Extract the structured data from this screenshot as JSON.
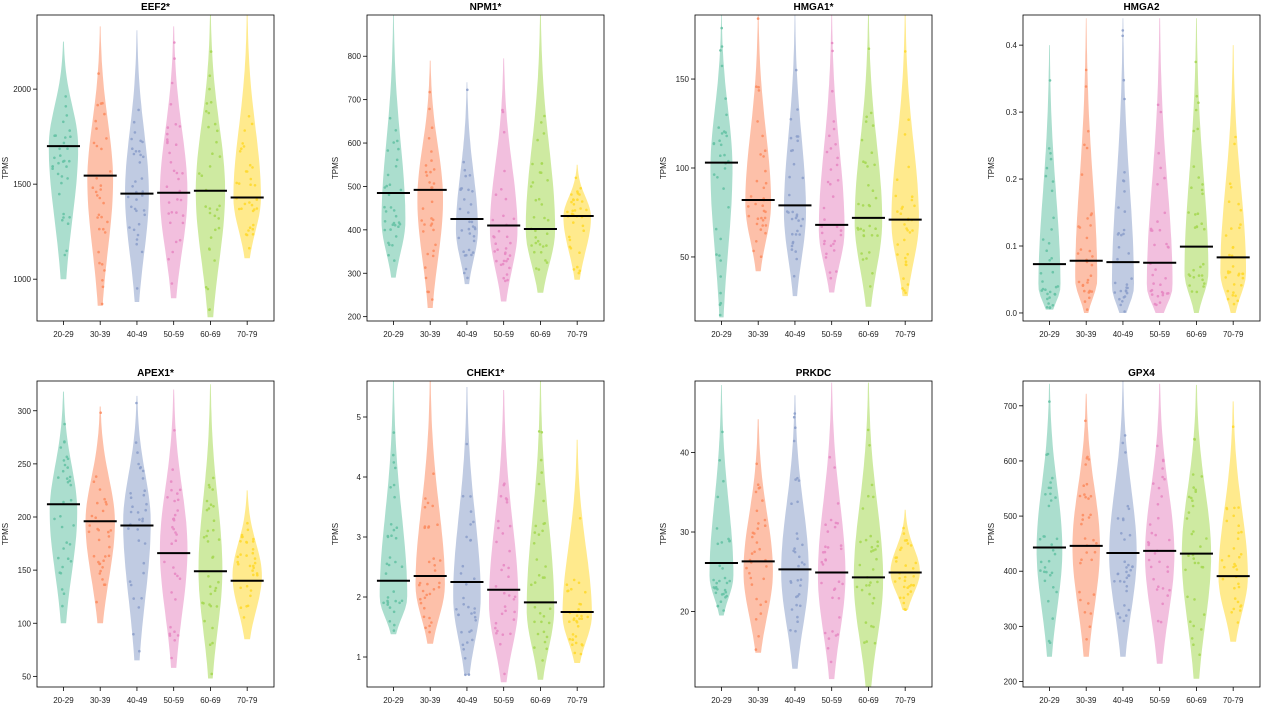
{
  "groups": [
    "20-29",
    "30-39",
    "40-49",
    "50-59",
    "60-69",
    "70-79"
  ],
  "colors": [
    "#66c2a5",
    "#fc8d62",
    "#8da0cb",
    "#e78ac3",
    "#a6d854",
    "#ffd92f"
  ],
  "ylabel": "TPMS",
  "chart_data": [
    {
      "type": "violin",
      "title": "EEF2*",
      "ylabel": "TPMS",
      "categories": [
        "20-29",
        "30-39",
        "40-49",
        "50-59",
        "60-69",
        "70-79"
      ],
      "yticks": [
        1000,
        1500,
        2000
      ],
      "ylim": [
        780,
        2390
      ],
      "medians": [
        1700,
        1545,
        1450,
        1455,
        1465,
        1430
      ],
      "ranges": [
        [
          1000,
          2250
        ],
        [
          860,
          2330
        ],
        [
          880,
          2310
        ],
        [
          900,
          2330
        ],
        [
          800,
          2390
        ],
        [
          1110,
          2390
        ]
      ],
      "widths": [
        0.8,
        0.7,
        0.65,
        0.75,
        0.8,
        0.75
      ],
      "peaks": [
        1700,
        1520,
        1450,
        1450,
        1460,
        1430
      ]
    },
    {
      "type": "violin",
      "title": "NPM1*",
      "ylabel": "TPMS",
      "categories": [
        "20-29",
        "30-39",
        "40-49",
        "50-59",
        "60-69",
        "70-79"
      ],
      "yticks": [
        200,
        300,
        400,
        500,
        600,
        700,
        800
      ],
      "ylim": [
        190,
        895
      ],
      "medians": [
        485,
        492,
        425,
        410,
        402,
        432
      ],
      "ranges": [
        [
          290,
          895
        ],
        [
          220,
          790
        ],
        [
          275,
          740
        ],
        [
          235,
          795
        ],
        [
          255,
          895
        ],
        [
          285,
          550
        ]
      ],
      "widths": [
        0.65,
        0.7,
        0.6,
        0.75,
        0.8,
        0.75
      ],
      "peaks": [
        420,
        470,
        400,
        400,
        400,
        430
      ]
    },
    {
      "type": "violin",
      "title": "HMGA1*",
      "ylabel": "TPMS",
      "categories": [
        "20-29",
        "30-39",
        "40-49",
        "50-59",
        "60-69",
        "70-79"
      ],
      "yticks": [
        50,
        100,
        150
      ],
      "ylim": [
        14,
        186
      ],
      "medians": [
        103,
        82,
        79,
        68,
        72,
        71
      ],
      "ranges": [
        [
          16,
          186
        ],
        [
          42,
          186
        ],
        [
          28,
          186
        ],
        [
          30,
          186
        ],
        [
          22,
          186
        ],
        [
          28,
          186
        ]
      ],
      "widths": [
        0.6,
        0.7,
        0.6,
        0.7,
        0.75,
        0.75
      ],
      "peaks": [
        100,
        80,
        75,
        65,
        70,
        70
      ]
    },
    {
      "type": "violin",
      "title": "HMGA2",
      "ylabel": "TPMS",
      "categories": [
        "20-29",
        "30-39",
        "40-49",
        "50-59",
        "60-69",
        "70-79"
      ],
      "yticks": [
        0.0,
        0.1,
        0.2,
        0.3,
        0.4
      ],
      "ylim": [
        -0.012,
        0.445
      ],
      "medians": [
        0.073,
        0.078,
        0.076,
        0.075,
        0.099,
        0.083
      ],
      "ranges": [
        [
          0.005,
          0.4
        ],
        [
          0.0,
          0.44
        ],
        [
          0.0,
          0.44
        ],
        [
          0.0,
          0.44
        ],
        [
          0.0,
          0.44
        ],
        [
          0.0,
          0.4
        ]
      ],
      "widths": [
        0.6,
        0.6,
        0.6,
        0.7,
        0.65,
        0.7
      ],
      "peaks": [
        0.04,
        0.05,
        0.04,
        0.04,
        0.06,
        0.06
      ]
    },
    {
      "type": "violin",
      "title": "APEX1*",
      "ylabel": "TPMS",
      "categories": [
        "20-29",
        "30-39",
        "40-49",
        "50-59",
        "60-69",
        "70-79"
      ],
      "yticks": [
        50,
        100,
        150,
        200,
        250,
        300
      ],
      "ylim": [
        40,
        328
      ],
      "medians": [
        212,
        196,
        192,
        166,
        149,
        140
      ],
      "ranges": [
        [
          100,
          318
        ],
        [
          100,
          304
        ],
        [
          65,
          314
        ],
        [
          58,
          320
        ],
        [
          48,
          325
        ],
        [
          85,
          225
        ]
      ],
      "widths": [
        0.75,
        0.8,
        0.75,
        0.75,
        0.65,
        0.8
      ],
      "peaks": [
        205,
        195,
        195,
        170,
        150,
        145
      ]
    },
    {
      "type": "violin",
      "title": "CHEK1*",
      "ylabel": "TPMS",
      "categories": [
        "20-29",
        "30-39",
        "40-49",
        "50-59",
        "60-69",
        "70-79"
      ],
      "yticks": [
        1,
        2,
        3,
        4,
        5
      ],
      "ylim": [
        0.5,
        5.6
      ],
      "medians": [
        2.27,
        2.35,
        2.25,
        2.12,
        1.91,
        1.75
      ],
      "ranges": [
        [
          1.38,
          5.6
        ],
        [
          1.22,
          5.6
        ],
        [
          0.7,
          5.5
        ],
        [
          0.58,
          5.45
        ],
        [
          0.62,
          5.6
        ],
        [
          0.9,
          4.62
        ]
      ],
      "widths": [
        0.75,
        0.8,
        0.75,
        0.8,
        0.75,
        0.8
      ],
      "peaks": [
        2.0,
        2.2,
        2.0,
        1.9,
        1.8,
        1.7
      ]
    },
    {
      "type": "violin",
      "title": "PRKDC",
      "ylabel": "TPMS",
      "categories": [
        "20-29",
        "30-39",
        "40-49",
        "50-59",
        "60-69",
        "70-79"
      ],
      "yticks": [
        20,
        30,
        40
      ],
      "ylim": [
        10.5,
        49
      ],
      "medians": [
        26.1,
        26.3,
        25.3,
        24.9,
        24.3,
        24.9
      ],
      "ranges": [
        [
          19.5,
          48.5
        ],
        [
          14.8,
          44.2
        ],
        [
          12.8,
          47.2
        ],
        [
          11.5,
          48.8
        ],
        [
          10.5,
          48.8
        ],
        [
          20.2,
          32.8
        ]
      ],
      "widths": [
        0.65,
        0.8,
        0.75,
        0.75,
        0.8,
        0.8
      ],
      "peaks": [
        24.5,
        25.0,
        25.0,
        24.5,
        24.0,
        25.0
      ]
    },
    {
      "type": "violin",
      "title": "GPX4",
      "ylabel": "TPMS",
      "categories": [
        "20-29",
        "30-39",
        "40-49",
        "50-59",
        "60-69",
        "70-79"
      ],
      "yticks": [
        200,
        300,
        400,
        500,
        600,
        700
      ],
      "ylim": [
        190,
        745
      ],
      "medians": [
        443,
        446,
        433,
        437,
        432,
        391
      ],
      "ranges": [
        [
          245,
          740
        ],
        [
          245,
          722
        ],
        [
          245,
          745
        ],
        [
          232,
          740
        ],
        [
          205,
          738
        ],
        [
          272,
          708
        ]
      ],
      "widths": [
        0.7,
        0.75,
        0.75,
        0.8,
        0.8,
        0.8
      ],
      "peaks": [
        440,
        445,
        430,
        430,
        430,
        390
      ]
    }
  ]
}
